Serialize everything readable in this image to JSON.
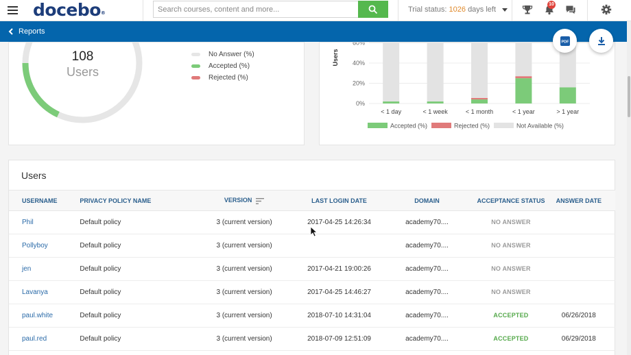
{
  "topbar": {
    "logo": "docebo",
    "logo_mark": "®",
    "search_placeholder": "Search courses, content and more...",
    "trial_prefix": "Trial status:",
    "trial_days": "1026",
    "trial_suffix": "days left",
    "notification_count": "10",
    "icons": [
      "menu-icon",
      "search-icon",
      "trophy-icon",
      "bell-icon",
      "chat-icon",
      "gear-icon"
    ]
  },
  "subbar": {
    "back_label": "Reports",
    "pdf_label": "PDF"
  },
  "summary": {
    "count": "108",
    "count_label": "Users",
    "legend": [
      {
        "label": "No Answer (%)",
        "color": "#e6e6e6"
      },
      {
        "label": "Accepted (%)",
        "color": "#7ccb79"
      },
      {
        "label": "Rejected (%)",
        "color": "#e07a7a"
      }
    ]
  },
  "colors": {
    "accepted": "#7ccb79",
    "rejected": "#e07a7a",
    "not_available": "#e3e3e3",
    "brand_blue": "#0465ac",
    "search_green": "#55b84e"
  },
  "chart_data": {
    "type": "bar",
    "stacked": true,
    "ylabel": "Users",
    "y_ticks": [
      "0%",
      "20%",
      "40%",
      "60%"
    ],
    "ylim": [
      0,
      60
    ],
    "categories": [
      "< 1 day",
      "< 1 week",
      "< 1 month",
      "< 1 year",
      "> 1 year"
    ],
    "series": [
      {
        "name": "Accepted (%)",
        "values": [
          2,
          2,
          4,
          25,
          16
        ]
      },
      {
        "name": "Rejected (%)",
        "values": [
          0,
          0,
          1.5,
          2,
          0
        ]
      },
      {
        "name": "Not Available (%)",
        "values": [
          58,
          58,
          54.5,
          33,
          44
        ]
      }
    ],
    "legend_position": "bottom",
    "grid": true
  },
  "users_table": {
    "title": "Users",
    "columns": [
      "USERNAME",
      "PRIVACY POLICY NAME",
      "VERSION",
      "LAST LOGIN DATE",
      "DOMAIN",
      "ACCEPTANCE STATUS",
      "ANSWER DATE"
    ],
    "rows": [
      {
        "username": "Phil",
        "policy": "Default policy",
        "version": "3 (current version)",
        "last_login": "2017-04-25 14:26:34",
        "domain": "academy70....",
        "status": "NO ANSWER",
        "answer_date": ""
      },
      {
        "username": "Pollyboy",
        "policy": "Default policy",
        "version": "3 (current version)",
        "last_login": "",
        "domain": "academy70....",
        "status": "NO ANSWER",
        "answer_date": ""
      },
      {
        "username": "jen",
        "policy": "Default policy",
        "version": "3 (current version)",
        "last_login": "2017-04-21 19:00:26",
        "domain": "academy70....",
        "status": "NO ANSWER",
        "answer_date": ""
      },
      {
        "username": "Lavanya",
        "policy": "Default policy",
        "version": "3 (current version)",
        "last_login": "2017-04-25 14:46:27",
        "domain": "academy70....",
        "status": "NO ANSWER",
        "answer_date": ""
      },
      {
        "username": "paul.white",
        "policy": "Default policy",
        "version": "3 (current version)",
        "last_login": "2018-07-10 14:31:04",
        "domain": "academy70....",
        "status": "ACCEPTED",
        "answer_date": "06/26/2018"
      },
      {
        "username": "paul.red",
        "policy": "Default policy",
        "version": "3 (current version)",
        "last_login": "2018-07-09 12:51:09",
        "domain": "academy70....",
        "status": "ACCEPTED",
        "answer_date": "06/29/2018"
      }
    ]
  }
}
